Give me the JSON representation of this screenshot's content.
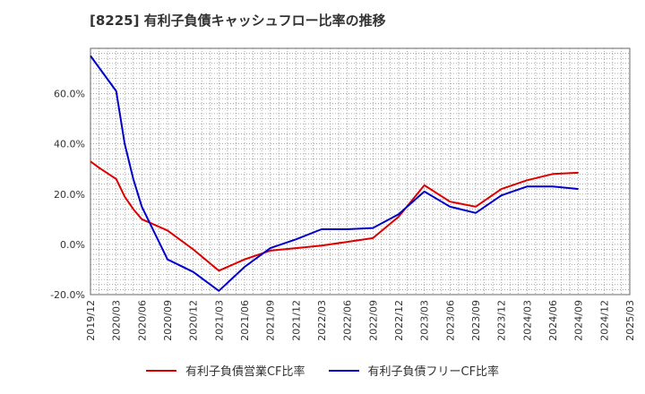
{
  "chart_data": {
    "type": "line",
    "title": "[8225]  有利子負債キャッシュフロー比率の推移",
    "x": [
      "2019/12",
      "2020/03",
      "2020/06",
      "2020/09",
      "2020/12",
      "2021/03",
      "2021/06",
      "2021/09",
      "2021/12",
      "2022/03",
      "2022/06",
      "2022/09",
      "2022/12",
      "2023/03",
      "2023/06",
      "2023/09",
      "2023/12",
      "2024/03",
      "2024/06",
      "2024/09",
      "2024/12",
      "2025/03"
    ],
    "xlabel": "",
    "ylabel": "",
    "ylim": [
      -20,
      78
    ],
    "yticks": [
      "-20.0%",
      "0.0%",
      "20.0%",
      "40.0%",
      "60.0%"
    ],
    "ytick_values": [
      -20,
      0,
      20,
      40,
      60
    ],
    "grid": true,
    "legend_position": "bottom",
    "series": [
      {
        "name": "有利子負債営業CF比率",
        "color": "#dd0000",
        "points": [
          [
            "2019/12",
            33
          ],
          [
            "2020/01",
            30.5
          ],
          [
            "2020/03",
            26
          ],
          [
            "2020/04",
            19
          ],
          [
            "2020/05",
            14
          ],
          [
            "2020/06",
            10
          ],
          [
            "2020/09",
            5.5
          ],
          [
            "2020/12",
            -2
          ],
          [
            "2021/03",
            -10.5
          ],
          [
            "2021/06",
            -6
          ],
          [
            "2021/09",
            -2.5
          ],
          [
            "2021/12",
            -1.5
          ],
          [
            "2022/03",
            -0.5
          ],
          [
            "2022/06",
            1
          ],
          [
            "2022/09",
            2.5
          ],
          [
            "2022/12",
            11
          ],
          [
            "2023/03",
            23.5
          ],
          [
            "2023/06",
            17
          ],
          [
            "2023/09",
            15
          ],
          [
            "2023/12",
            22
          ],
          [
            "2024/03",
            25.5
          ],
          [
            "2024/06",
            28
          ],
          [
            "2024/09",
            28.5
          ]
        ]
      },
      {
        "name": "有利子負債フリーCF比率",
        "color": "#0000cc",
        "points": [
          [
            "2019/12",
            75
          ],
          [
            "2020/03",
            61
          ],
          [
            "2020/04",
            40
          ],
          [
            "2020/05",
            26
          ],
          [
            "2020/06",
            15
          ],
          [
            "2020/09",
            -6
          ],
          [
            "2020/12",
            -11
          ],
          [
            "2021/03",
            -18.5
          ],
          [
            "2021/06",
            -9
          ],
          [
            "2021/09",
            -1.5
          ],
          [
            "2021/12",
            2
          ],
          [
            "2022/03",
            6
          ],
          [
            "2022/06",
            6
          ],
          [
            "2022/09",
            6.5
          ],
          [
            "2022/12",
            12
          ],
          [
            "2023/03",
            21
          ],
          [
            "2023/06",
            15
          ],
          [
            "2023/09",
            12.5
          ],
          [
            "2023/12",
            19.5
          ],
          [
            "2024/03",
            23
          ],
          [
            "2024/06",
            23
          ],
          [
            "2024/09",
            22
          ]
        ]
      }
    ]
  }
}
